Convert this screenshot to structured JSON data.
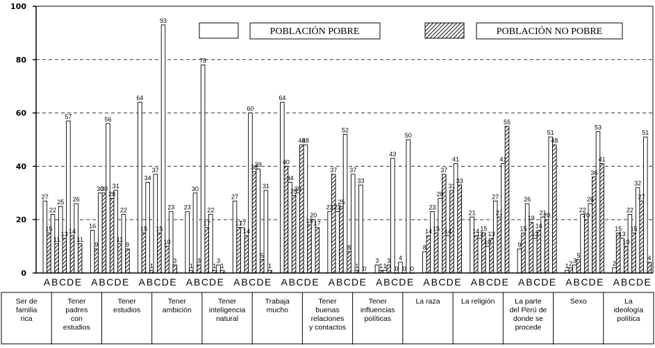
{
  "chart_data": {
    "type": "bar",
    "ylim": [
      0,
      100
    ],
    "yticks": [
      0,
      20,
      40,
      60,
      80,
      100
    ],
    "grid": "horizontal dashed",
    "legend": {
      "position": "top-right",
      "items": [
        {
          "label": "POBLACIÓN POBRE",
          "pattern": "white"
        },
        {
          "label": "POBLACIÓN NO POBRE",
          "pattern": "hatched"
        }
      ]
    },
    "bar_letters": [
      "A",
      "B",
      "C",
      "D",
      "E"
    ],
    "categories": [
      {
        "lines": [
          "Ser de",
          "familia",
          "rica"
        ]
      },
      {
        "lines": [
          "Tener",
          "padres",
          "con",
          "estudios"
        ]
      },
      {
        "lines": [
          "Tener",
          "estudios"
        ]
      },
      {
        "lines": [
          "Tener",
          "ambición"
        ]
      },
      {
        "lines": [
          "Tener",
          "inteligencia",
          "natural"
        ]
      },
      {
        "lines": [
          "Trabaja",
          "mucho"
        ]
      },
      {
        "lines": [
          "Tener",
          "buenas",
          "relaciones",
          "y contactos"
        ]
      },
      {
        "lines": [
          "Tener",
          "influencias",
          "políticas"
        ]
      },
      {
        "lines": [
          "La raza"
        ]
      },
      {
        "lines": [
          "La religión"
        ]
      },
      {
        "lines": [
          "La parte",
          "del Perú de",
          "donde se",
          "procede"
        ]
      },
      {
        "lines": [
          "Sexo"
        ]
      },
      {
        "lines": [
          "La",
          "ideología",
          "política"
        ]
      }
    ],
    "series": [
      {
        "name": "POBLACIÓN POBRE",
        "values": [
          [
            27,
            22,
            25,
            57,
            26
          ],
          [
            16,
            30,
            56,
            31,
            22
          ],
          [
            64,
            34,
            37,
            93,
            23
          ],
          [
            23,
            30,
            78,
            22,
            3
          ],
          [
            27,
            17,
            60,
            39,
            31
          ],
          [
            64,
            34,
            30,
            48,
            20
          ],
          [
            23,
            23,
            52,
            37,
            33
          ],
          [
            3,
            1,
            43,
            4,
            50
          ],
          [
            8,
            23,
            28,
            14,
            41
          ],
          [
            21,
            13,
            10,
            27,
            41
          ],
          [
            9,
            26,
            13,
            21,
            51
          ],
          [
            1,
            3,
            22,
            26,
            53
          ],
          [
            2,
            13,
            22,
            32,
            51
          ]
        ]
      },
      {
        "name": "POBLACIÓN NO POBRE",
        "values": [
          [
            15,
            11,
            13,
            14,
            11
          ],
          [
            9,
            30,
            28,
            11,
            9
          ],
          [
            15,
            1,
            15,
            10,
            3
          ],
          [
            1,
            3,
            17,
            1,
            1
          ],
          [
            17,
            14,
            38,
            5,
            1
          ],
          [
            40,
            29,
            48,
            18,
            17
          ],
          [
            37,
            25,
            8,
            1,
            0
          ],
          [
            1,
            3,
            0,
            0,
            0
          ],
          [
            14,
            15,
            37,
            31,
            33
          ],
          [
            14,
            15,
            13,
            21,
            55
          ],
          [
            15,
            19,
            16,
            20,
            48
          ],
          [
            2,
            5,
            20,
            36,
            41
          ],
          [
            15,
            10,
            15,
            27,
            4
          ]
        ]
      }
    ]
  }
}
